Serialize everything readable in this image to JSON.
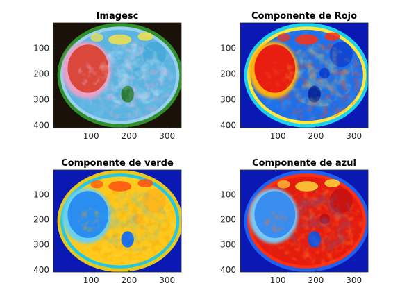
{
  "chart_data": [
    {
      "type": "heatmap",
      "title": "Imagesc",
      "colormap": "photo-rgb",
      "xlim": [
        1,
        337
      ],
      "ylim": [
        1,
        409
      ],
      "y_reversed": true,
      "xticks": [
        100,
        200,
        300
      ],
      "yticks": [
        100,
        200,
        300,
        400
      ],
      "background": "#1a1208"
    },
    {
      "type": "heatmap",
      "title": "Componente de Rojo",
      "colormap": "jet",
      "xlim": [
        1,
        337
      ],
      "ylim": [
        1,
        409
      ],
      "y_reversed": true,
      "xticks": [
        100,
        200,
        300
      ],
      "yticks": [
        100,
        200,
        300,
        400
      ],
      "background": "#0a19b4"
    },
    {
      "type": "heatmap",
      "title": "Componente de verde",
      "colormap": "jet",
      "xlim": [
        1,
        337
      ],
      "ylim": [
        1,
        409
      ],
      "y_reversed": true,
      "xticks": [
        100,
        200,
        300
      ],
      "yticks": [
        100,
        200,
        300,
        400
      ],
      "background": "#0a19b4"
    },
    {
      "type": "heatmap",
      "title": "Componente de azul",
      "colormap": "jet",
      "xlim": [
        1,
        337
      ],
      "ylim": [
        1,
        409
      ],
      "y_reversed": true,
      "xticks": [
        100,
        200,
        300
      ],
      "yticks": [
        100,
        200,
        300,
        400
      ],
      "background": "#0a19b4"
    }
  ]
}
